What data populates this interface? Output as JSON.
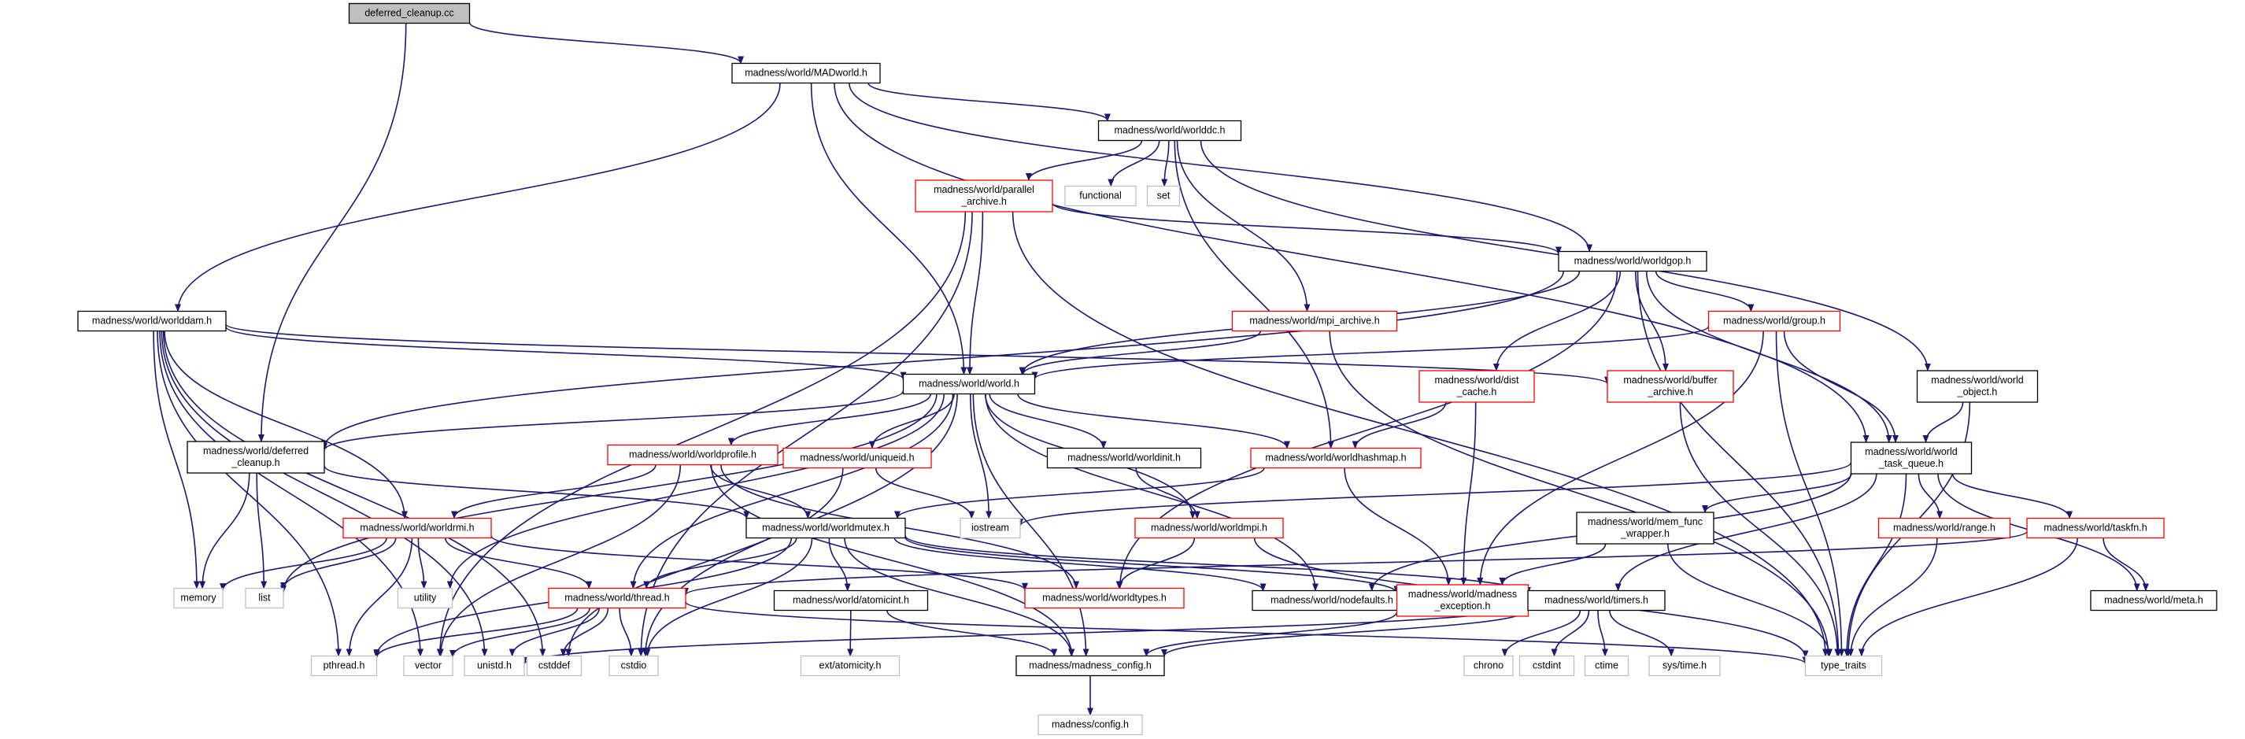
{
  "colors": {
    "edge": "#191970",
    "box_black": "#000000",
    "box_red": "#ff0000",
    "box_gray": "#bfbfbf",
    "root_fill": "#bfbfbf",
    "text": "#000000"
  },
  "nodes": [
    {
      "id": "deferred_cleanup_cc",
      "lines": [
        "deferred_cleanup.cc"
      ],
      "style": "root"
    },
    {
      "id": "madworld",
      "lines": [
        "madness/world/MADworld.h"
      ],
      "style": "black"
    },
    {
      "id": "worldddc",
      "lines": [
        "madness/world/worlddc.h"
      ],
      "style": "black"
    },
    {
      "id": "parallel_archive",
      "lines": [
        "madness/world/parallel",
        "_archive.h"
      ],
      "style": "red"
    },
    {
      "id": "functional",
      "lines": [
        "functional"
      ],
      "style": "gray"
    },
    {
      "id": "set",
      "lines": [
        "set"
      ],
      "style": "gray"
    },
    {
      "id": "worldgop",
      "lines": [
        "madness/world/worldgop.h"
      ],
      "style": "black"
    },
    {
      "id": "worlddam",
      "lines": [
        "madness/world/worlddam.h"
      ],
      "style": "black"
    },
    {
      "id": "mpi_archive",
      "lines": [
        "madness/world/mpi_archive.h"
      ],
      "style": "red"
    },
    {
      "id": "group",
      "lines": [
        "madness/world/group.h"
      ],
      "style": "red"
    },
    {
      "id": "world",
      "lines": [
        "madness/world/world.h"
      ],
      "style": "black"
    },
    {
      "id": "dist_cache",
      "lines": [
        "madness/world/dist",
        "_cache.h"
      ],
      "style": "red"
    },
    {
      "id": "buffer_archive",
      "lines": [
        "madness/world/buffer",
        "_archive.h"
      ],
      "style": "red"
    },
    {
      "id": "world_object",
      "lines": [
        "madness/world/world",
        "_object.h"
      ],
      "style": "black"
    },
    {
      "id": "deferred_cleanup_h",
      "lines": [
        "madness/world/deferred",
        "_cleanup.h"
      ],
      "style": "black"
    },
    {
      "id": "worldprofile",
      "lines": [
        "madness/world/worldprofile.h"
      ],
      "style": "red"
    },
    {
      "id": "uniqueid",
      "lines": [
        "madness/world/uniqueid.h"
      ],
      "style": "red"
    },
    {
      "id": "worldinit",
      "lines": [
        "madness/world/worldinit.h"
      ],
      "style": "black"
    },
    {
      "id": "worldhashmap",
      "lines": [
        "madness/world/worldhashmap.h"
      ],
      "style": "red"
    },
    {
      "id": "world_task_queue",
      "lines": [
        "madness/world/world",
        "_task_queue.h"
      ],
      "style": "black"
    },
    {
      "id": "worldrmi",
      "lines": [
        "madness/world/worldrmi.h"
      ],
      "style": "red"
    },
    {
      "id": "worldmutex",
      "lines": [
        "madness/world/worldmutex.h"
      ],
      "style": "black"
    },
    {
      "id": "iostream",
      "lines": [
        "iostream"
      ],
      "style": "gray"
    },
    {
      "id": "worldmpi",
      "lines": [
        "madness/world/worldmpi.h"
      ],
      "style": "red"
    },
    {
      "id": "mem_func_wrapper",
      "lines": [
        "madness/world/mem_func",
        "_wrapper.h"
      ],
      "style": "black"
    },
    {
      "id": "range",
      "lines": [
        "madness/world/range.h"
      ],
      "style": "red"
    },
    {
      "id": "taskfn",
      "lines": [
        "madness/world/taskfn.h"
      ],
      "style": "red"
    },
    {
      "id": "memory",
      "lines": [
        "memory"
      ],
      "style": "gray"
    },
    {
      "id": "list",
      "lines": [
        "list"
      ],
      "style": "gray"
    },
    {
      "id": "utility",
      "lines": [
        "utility"
      ],
      "style": "gray"
    },
    {
      "id": "thread",
      "lines": [
        "madness/world/thread.h"
      ],
      "style": "red"
    },
    {
      "id": "worldtypes",
      "lines": [
        "madness/world/worldtypes.h"
      ],
      "style": "red"
    },
    {
      "id": "atomicint",
      "lines": [
        "madness/world/atomicint.h"
      ],
      "style": "black"
    },
    {
      "id": "nodefaults",
      "lines": [
        "madness/world/nodefaults.h"
      ],
      "style": "black"
    },
    {
      "id": "madness_exception",
      "lines": [
        "madness/world/madness",
        "_exception.h"
      ],
      "style": "red"
    },
    {
      "id": "timers",
      "lines": [
        "madness/world/timers.h"
      ],
      "style": "black"
    },
    {
      "id": "meta",
      "lines": [
        "madness/world/meta.h"
      ],
      "style": "black"
    },
    {
      "id": "pthread",
      "lines": [
        "pthread.h"
      ],
      "style": "gray"
    },
    {
      "id": "vector",
      "lines": [
        "vector"
      ],
      "style": "gray"
    },
    {
      "id": "unistd",
      "lines": [
        "unistd.h"
      ],
      "style": "gray"
    },
    {
      "id": "cstddef",
      "lines": [
        "cstddef"
      ],
      "style": "gray"
    },
    {
      "id": "cstdio",
      "lines": [
        "cstdio"
      ],
      "style": "gray"
    },
    {
      "id": "ext_atomicity",
      "lines": [
        "ext/atomicity.h"
      ],
      "style": "gray"
    },
    {
      "id": "madness_config",
      "lines": [
        "madness/madness_config.h"
      ],
      "style": "black"
    },
    {
      "id": "chrono",
      "lines": [
        "chrono"
      ],
      "style": "gray"
    },
    {
      "id": "cstdint",
      "lines": [
        "cstdint"
      ],
      "style": "gray"
    },
    {
      "id": "ctime",
      "lines": [
        "ctime"
      ],
      "style": "gray"
    },
    {
      "id": "sys_time",
      "lines": [
        "sys/time.h"
      ],
      "style": "gray"
    },
    {
      "id": "type_traits",
      "lines": [
        "type_traits"
      ],
      "style": "gray"
    },
    {
      "id": "config",
      "lines": [
        "madness/config.h"
      ],
      "style": "gray"
    }
  ],
  "edges": [
    [
      "deferred_cleanup_cc",
      "madworld"
    ],
    [
      "deferred_cleanup_cc",
      "deferred_cleanup_h"
    ],
    [
      "madworld",
      "worldddc"
    ],
    [
      "madworld",
      "worldgop"
    ],
    [
      "madworld",
      "worlddam"
    ],
    [
      "madworld",
      "world"
    ],
    [
      "madworld",
      "world_task_queue"
    ],
    [
      "worldddc",
      "parallel_archive"
    ],
    [
      "worldddc",
      "functional"
    ],
    [
      "worldddc",
      "set"
    ],
    [
      "worldddc",
      "mpi_archive"
    ],
    [
      "worldddc",
      "worldhashmap"
    ],
    [
      "worldddc",
      "world_object"
    ],
    [
      "parallel_archive",
      "world"
    ],
    [
      "parallel_archive",
      "worldgop"
    ],
    [
      "parallel_archive",
      "cstdio"
    ],
    [
      "parallel_archive",
      "vector"
    ],
    [
      "parallel_archive",
      "type_traits"
    ],
    [
      "worldgop",
      "world"
    ],
    [
      "worldgop",
      "group"
    ],
    [
      "worldgop",
      "dist_cache"
    ],
    [
      "worldgop",
      "buffer_archive"
    ],
    [
      "worldgop",
      "world_task_queue"
    ],
    [
      "worldgop",
      "deferred_cleanup_h"
    ],
    [
      "worldgop",
      "worldtypes"
    ],
    [
      "worldgop",
      "type_traits"
    ],
    [
      "worlddam",
      "world"
    ],
    [
      "worlddam",
      "worldrmi"
    ],
    [
      "worlddam",
      "memory"
    ],
    [
      "worlddam",
      "pthread"
    ],
    [
      "worlddam",
      "vector"
    ],
    [
      "worlddam",
      "unistd"
    ],
    [
      "worlddam",
      "cstddef"
    ],
    [
      "worlddam",
      "buffer_archive"
    ],
    [
      "mpi_archive",
      "world"
    ],
    [
      "mpi_archive",
      "type_traits"
    ],
    [
      "group",
      "world"
    ],
    [
      "group",
      "world_task_queue"
    ],
    [
      "group",
      "madness_exception"
    ],
    [
      "group",
      "type_traits"
    ],
    [
      "world",
      "deferred_cleanup_h"
    ],
    [
      "world",
      "worldprofile"
    ],
    [
      "world",
      "uniqueid"
    ],
    [
      "world",
      "worldinit"
    ],
    [
      "world",
      "worldhashmap"
    ],
    [
      "world",
      "worldmpi"
    ],
    [
      "world",
      "iostream"
    ],
    [
      "world",
      "list"
    ],
    [
      "world",
      "utility"
    ],
    [
      "world",
      "thread"
    ],
    [
      "world",
      "nodefaults"
    ],
    [
      "world",
      "madness_config"
    ],
    [
      "world",
      "cstdio"
    ],
    [
      "dist_cache",
      "worldhashmap"
    ],
    [
      "dist_cache",
      "madness_exception"
    ],
    [
      "buffer_archive",
      "type_traits"
    ],
    [
      "world_object",
      "world_task_queue"
    ],
    [
      "world_object",
      "type_traits"
    ],
    [
      "deferred_cleanup_h",
      "worldmutex"
    ],
    [
      "deferred_cleanup_h",
      "memory"
    ],
    [
      "deferred_cleanup_h",
      "list"
    ],
    [
      "worldprofile",
      "worldrmi"
    ],
    [
      "worldprofile",
      "worldmutex"
    ],
    [
      "worldprofile",
      "worldtypes"
    ],
    [
      "worldprofile",
      "madness_config"
    ],
    [
      "worldprofile",
      "vector"
    ],
    [
      "uniqueid",
      "iostream"
    ],
    [
      "uniqueid",
      "cstddef"
    ],
    [
      "worldinit",
      "worldmpi"
    ],
    [
      "worldhashmap",
      "worldmutex"
    ],
    [
      "worldhashmap",
      "madness_exception"
    ],
    [
      "world_task_queue",
      "iostream"
    ],
    [
      "world_task_queue",
      "mem_func_wrapper"
    ],
    [
      "world_task_queue",
      "range"
    ],
    [
      "world_task_queue",
      "taskfn"
    ],
    [
      "world_task_queue",
      "meta"
    ],
    [
      "world_task_queue",
      "timers"
    ],
    [
      "world_task_queue",
      "nodefaults"
    ],
    [
      "world_task_queue",
      "type_traits"
    ],
    [
      "worldrmi",
      "thread"
    ],
    [
      "worldrmi",
      "worldtypes"
    ],
    [
      "worldrmi",
      "memory"
    ],
    [
      "worldrmi",
      "list"
    ],
    [
      "worldrmi",
      "utility"
    ],
    [
      "worldrmi",
      "pthread"
    ],
    [
      "worldmutex",
      "atomicint"
    ],
    [
      "worldmutex",
      "thread"
    ],
    [
      "worldmutex",
      "madness_exception"
    ],
    [
      "worldmutex",
      "nodefaults"
    ],
    [
      "worldmutex",
      "timers"
    ],
    [
      "worldmutex",
      "madness_config"
    ],
    [
      "worldmutex",
      "pthread"
    ],
    [
      "worldmutex",
      "cstdio"
    ],
    [
      "worldmpi",
      "worldtypes"
    ],
    [
      "worldmpi",
      "type_traits"
    ],
    [
      "mem_func_wrapper",
      "madness_exception"
    ],
    [
      "mem_func_wrapper",
      "type_traits"
    ],
    [
      "range",
      "type_traits"
    ],
    [
      "taskfn",
      "meta"
    ],
    [
      "taskfn",
      "thread"
    ],
    [
      "taskfn",
      "type_traits"
    ],
    [
      "thread",
      "pthread"
    ],
    [
      "thread",
      "vector"
    ],
    [
      "thread",
      "unistd"
    ],
    [
      "thread",
      "cstddef"
    ],
    [
      "thread",
      "cstdio"
    ],
    [
      "thread",
      "type_traits"
    ],
    [
      "atomicint",
      "ext_atomicity"
    ],
    [
      "atomicint",
      "madness_config"
    ],
    [
      "madness_exception",
      "madness_config"
    ],
    [
      "timers",
      "madness_config"
    ],
    [
      "timers",
      "chrono"
    ],
    [
      "timers",
      "cstdint"
    ],
    [
      "timers",
      "ctime"
    ],
    [
      "timers",
      "sys_time"
    ],
    [
      "timers",
      "unistd"
    ],
    [
      "madness_config",
      "config"
    ]
  ]
}
